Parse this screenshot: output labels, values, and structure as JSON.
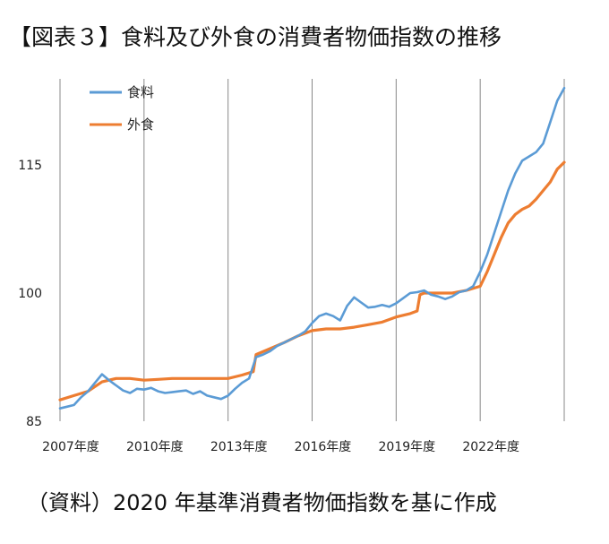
{
  "title": "【図表３】食料及び外食の消費者物価指数の推移",
  "source_note": "（資料）2020 年基準消費者物価指数を基に作成",
  "colors": {
    "food": "#5b9bd5",
    "dining_out": "#ed7d31",
    "grid": "#888888"
  },
  "chart_data": {
    "type": "line",
    "title": "【図表３】食料及び外食の消費者物価指数の推移",
    "xlabel": "",
    "ylabel": "",
    "x_tick_labels": [
      "2007年度",
      "2010年度",
      "2013年度",
      "2016年度",
      "2019年度",
      "2022年度"
    ],
    "y_ticks": [
      85,
      100,
      115
    ],
    "ylim": [
      85,
      125
    ],
    "xlim": [
      2007.0,
      2025.0
    ],
    "grid": "vertical lines at fiscal year ticks",
    "legend_position": "top-left",
    "series": [
      {
        "name": "食料",
        "x": [
          2007.0,
          2007.25,
          2007.5,
          2007.75,
          2008.0,
          2008.25,
          2008.5,
          2008.75,
          2009.0,
          2009.25,
          2009.5,
          2009.75,
          2010.0,
          2010.25,
          2010.5,
          2010.75,
          2011.0,
          2011.25,
          2011.5,
          2011.75,
          2012.0,
          2012.25,
          2012.5,
          2012.75,
          2013.0,
          2013.25,
          2013.5,
          2013.75,
          2014.0,
          2014.25,
          2014.5,
          2014.75,
          2015.0,
          2015.25,
          2015.5,
          2015.75,
          2016.0,
          2016.25,
          2016.5,
          2016.75,
          2017.0,
          2017.25,
          2017.5,
          2017.75,
          2018.0,
          2018.25,
          2018.5,
          2018.75,
          2019.0,
          2019.25,
          2019.5,
          2019.75,
          2020.0,
          2020.25,
          2020.5,
          2020.75,
          2021.0,
          2021.25,
          2021.5,
          2021.75,
          2022.0,
          2022.25,
          2022.5,
          2022.75,
          2023.0,
          2023.25,
          2023.5,
          2023.75,
          2024.0,
          2024.25,
          2024.5,
          2024.75,
          2025.0
        ],
        "values": [
          86.5,
          86.7,
          86.9,
          87.8,
          88.5,
          89.5,
          90.5,
          89.8,
          89.2,
          88.6,
          88.3,
          88.8,
          88.7,
          88.9,
          88.5,
          88.3,
          88.4,
          88.5,
          88.6,
          88.2,
          88.5,
          88.0,
          87.8,
          87.6,
          88.0,
          88.8,
          89.5,
          90.0,
          92.5,
          92.8,
          93.2,
          93.8,
          94.2,
          94.6,
          95.0,
          95.5,
          96.5,
          97.3,
          97.6,
          97.3,
          96.8,
          98.5,
          99.5,
          98.9,
          98.3,
          98.4,
          98.6,
          98.4,
          98.8,
          99.4,
          100.0,
          100.1,
          100.3,
          99.8,
          99.6,
          99.3,
          99.6,
          100.1,
          100.3,
          100.8,
          102.5,
          104.5,
          107.0,
          109.5,
          112.0,
          114.0,
          115.5,
          116.0,
          116.5,
          117.5,
          120.0,
          122.5,
          124.0
        ]
      },
      {
        "name": "外食",
        "x": [
          2007.0,
          2007.5,
          2008.0,
          2008.5,
          2009.0,
          2009.5,
          2010.0,
          2010.5,
          2011.0,
          2011.5,
          2012.0,
          2012.5,
          2013.0,
          2013.5,
          2013.9,
          2014.0,
          2014.5,
          2015.0,
          2015.5,
          2016.0,
          2016.5,
          2017.0,
          2017.5,
          2018.0,
          2018.5,
          2019.0,
          2019.5,
          2019.75,
          2019.85,
          2020.0,
          2020.5,
          2021.0,
          2021.5,
          2022.0,
          2022.25,
          2022.5,
          2022.75,
          2023.0,
          2023.25,
          2023.5,
          2023.75,
          2024.0,
          2024.25,
          2024.5,
          2024.75,
          2025.0
        ],
        "values": [
          87.5,
          88.0,
          88.5,
          89.6,
          90.0,
          90.0,
          89.8,
          89.9,
          90.0,
          90.0,
          90.0,
          90.0,
          90.0,
          90.4,
          90.8,
          92.8,
          93.5,
          94.2,
          95.0,
          95.6,
          95.8,
          95.8,
          96.0,
          96.3,
          96.6,
          97.2,
          97.6,
          97.9,
          99.8,
          100.0,
          100.0,
          100.0,
          100.3,
          100.8,
          102.5,
          104.5,
          106.5,
          108.2,
          109.2,
          109.8,
          110.2,
          111.0,
          112.0,
          113.0,
          114.5,
          115.3
        ]
      }
    ]
  }
}
